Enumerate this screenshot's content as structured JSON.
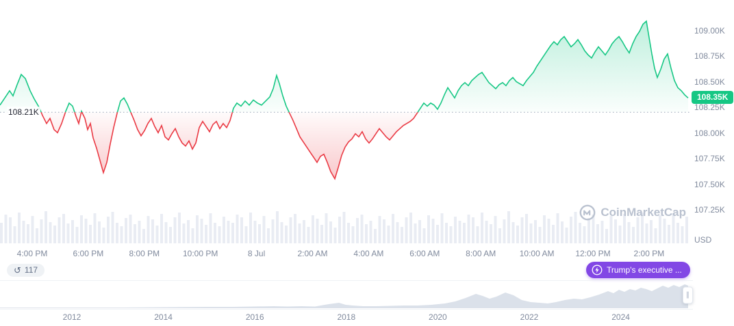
{
  "watermark": {
    "text": "CoinMarketCap"
  },
  "badges": {
    "history_count": "117",
    "news_label": "Trump's executive ..."
  },
  "chart_data": {
    "type": "area",
    "baseline_value": 108.21,
    "baseline_label": "108.21K",
    "current_value": 108.35,
    "current_price_label": "108.35K",
    "y_unit": "USD",
    "ylim": [
      107.1,
      109.25
    ],
    "up_color": "#16c784",
    "down_color": "#ea3943",
    "y_ticks": [
      {
        "label": "109.00K",
        "value": 109.0
      },
      {
        "label": "108.75K",
        "value": 108.75
      },
      {
        "label": "108.50K",
        "value": 108.5
      },
      {
        "label": "108.25K",
        "value": 108.25
      },
      {
        "label": "108.00K",
        "value": 108.0
      },
      {
        "label": "107.75K",
        "value": 107.75
      },
      {
        "label": "107.50K",
        "value": 107.5
      },
      {
        "label": "107.25K",
        "value": 107.25
      }
    ],
    "x_ticks": [
      "4:00 PM",
      "6:00 PM",
      "8:00 PM",
      "10:00 PM",
      "8 Jul",
      "2:00 AM",
      "4:00 AM",
      "6:00 AM",
      "8:00 AM",
      "10:00 AM",
      "12:00 PM",
      "2:00 PM"
    ],
    "points": [
      [
        0,
        108.28
      ],
      [
        8,
        108.36
      ],
      [
        14,
        108.42
      ],
      [
        19,
        108.37
      ],
      [
        25,
        108.48
      ],
      [
        31,
        108.58
      ],
      [
        37,
        108.54
      ],
      [
        44,
        108.42
      ],
      [
        50,
        108.34
      ],
      [
        57,
        108.26
      ],
      [
        62,
        108.18
      ],
      [
        68,
        108.1
      ],
      [
        73,
        108.15
      ],
      [
        79,
        108.04
      ],
      [
        84,
        108.01
      ],
      [
        90,
        108.1
      ],
      [
        96,
        108.22
      ],
      [
        101,
        108.3
      ],
      [
        106,
        108.27
      ],
      [
        111,
        108.17
      ],
      [
        115,
        108.1
      ],
      [
        119,
        108.22
      ],
      [
        124,
        108.15
      ],
      [
        128,
        108.04
      ],
      [
        132,
        108.1
      ],
      [
        136,
        107.96
      ],
      [
        141,
        107.86
      ],
      [
        146,
        107.74
      ],
      [
        151,
        107.62
      ],
      [
        156,
        107.72
      ],
      [
        161,
        107.9
      ],
      [
        166,
        108.06
      ],
      [
        171,
        108.2
      ],
      [
        176,
        108.32
      ],
      [
        181,
        108.35
      ],
      [
        186,
        108.29
      ],
      [
        191,
        108.21
      ],
      [
        196,
        108.13
      ],
      [
        201,
        108.04
      ],
      [
        206,
        107.98
      ],
      [
        211,
        108.03
      ],
      [
        216,
        108.1
      ],
      [
        221,
        108.15
      ],
      [
        226,
        108.07
      ],
      [
        231,
        108.01
      ],
      [
        236,
        108.08
      ],
      [
        241,
        107.97
      ],
      [
        246,
        107.94
      ],
      [
        251,
        108.0
      ],
      [
        256,
        108.05
      ],
      [
        261,
        107.97
      ],
      [
        266,
        107.91
      ],
      [
        271,
        107.88
      ],
      [
        276,
        107.93
      ],
      [
        281,
        107.85
      ],
      [
        286,
        107.91
      ],
      [
        291,
        108.06
      ],
      [
        296,
        108.12
      ],
      [
        301,
        108.07
      ],
      [
        306,
        108.02
      ],
      [
        311,
        108.09
      ],
      [
        316,
        108.12
      ],
      [
        321,
        108.05
      ],
      [
        326,
        108.1
      ],
      [
        331,
        108.06
      ],
      [
        336,
        108.13
      ],
      [
        341,
        108.25
      ],
      [
        346,
        108.3
      ],
      [
        352,
        108.27
      ],
      [
        358,
        108.32
      ],
      [
        364,
        108.28
      ],
      [
        370,
        108.33
      ],
      [
        376,
        108.3
      ],
      [
        382,
        108.28
      ],
      [
        388,
        108.32
      ],
      [
        394,
        108.36
      ],
      [
        399,
        108.44
      ],
      [
        404,
        108.57
      ],
      [
        408,
        108.49
      ],
      [
        413,
        108.37
      ],
      [
        418,
        108.27
      ],
      [
        423,
        108.2
      ],
      [
        428,
        108.13
      ],
      [
        433,
        108.05
      ],
      [
        438,
        107.97
      ],
      [
        443,
        107.92
      ],
      [
        448,
        107.87
      ],
      [
        453,
        107.82
      ],
      [
        458,
        107.77
      ],
      [
        463,
        107.72
      ],
      [
        468,
        107.78
      ],
      [
        473,
        107.8
      ],
      [
        478,
        107.72
      ],
      [
        483,
        107.63
      ],
      [
        489,
        107.56
      ],
      [
        494,
        107.67
      ],
      [
        499,
        107.79
      ],
      [
        504,
        107.87
      ],
      [
        509,
        107.92
      ],
      [
        514,
        107.95
      ],
      [
        519,
        108.0
      ],
      [
        524,
        107.97
      ],
      [
        529,
        108.02
      ],
      [
        534,
        107.95
      ],
      [
        539,
        107.91
      ],
      [
        544,
        107.95
      ],
      [
        549,
        108.0
      ],
      [
        554,
        108.05
      ],
      [
        559,
        108.01
      ],
      [
        564,
        107.97
      ],
      [
        569,
        107.94
      ],
      [
        574,
        107.98
      ],
      [
        579,
        108.02
      ],
      [
        584,
        108.05
      ],
      [
        589,
        108.08
      ],
      [
        594,
        108.1
      ],
      [
        599,
        108.12
      ],
      [
        604,
        108.15
      ],
      [
        609,
        108.2
      ],
      [
        614,
        108.25
      ],
      [
        619,
        108.3
      ],
      [
        624,
        108.27
      ],
      [
        629,
        108.3
      ],
      [
        634,
        108.28
      ],
      [
        639,
        108.24
      ],
      [
        644,
        108.3
      ],
      [
        649,
        108.38
      ],
      [
        654,
        108.45
      ],
      [
        659,
        108.4
      ],
      [
        664,
        108.35
      ],
      [
        669,
        108.42
      ],
      [
        674,
        108.47
      ],
      [
        679,
        108.5
      ],
      [
        684,
        108.47
      ],
      [
        689,
        108.52
      ],
      [
        694,
        108.55
      ],
      [
        699,
        108.58
      ],
      [
        704,
        108.6
      ],
      [
        709,
        108.55
      ],
      [
        714,
        108.5
      ],
      [
        719,
        108.47
      ],
      [
        724,
        108.44
      ],
      [
        729,
        108.48
      ],
      [
        734,
        108.5
      ],
      [
        739,
        108.47
      ],
      [
        744,
        108.52
      ],
      [
        749,
        108.55
      ],
      [
        754,
        108.51
      ],
      [
        759,
        108.49
      ],
      [
        764,
        108.47
      ],
      [
        769,
        108.52
      ],
      [
        774,
        108.56
      ],
      [
        779,
        108.6
      ],
      [
        784,
        108.66
      ],
      [
        789,
        108.71
      ],
      [
        794,
        108.76
      ],
      [
        799,
        108.81
      ],
      [
        804,
        108.86
      ],
      [
        809,
        108.9
      ],
      [
        814,
        108.87
      ],
      [
        819,
        108.92
      ],
      [
        824,
        108.95
      ],
      [
        829,
        108.9
      ],
      [
        834,
        108.85
      ],
      [
        839,
        108.88
      ],
      [
        844,
        108.92
      ],
      [
        849,
        108.87
      ],
      [
        854,
        108.81
      ],
      [
        859,
        108.77
      ],
      [
        864,
        108.74
      ],
      [
        869,
        108.8
      ],
      [
        874,
        108.85
      ],
      [
        879,
        108.81
      ],
      [
        884,
        108.77
      ],
      [
        889,
        108.82
      ],
      [
        894,
        108.88
      ],
      [
        899,
        108.92
      ],
      [
        904,
        108.95
      ],
      [
        909,
        108.9
      ],
      [
        914,
        108.84
      ],
      [
        919,
        108.79
      ],
      [
        924,
        108.88
      ],
      [
        929,
        108.95
      ],
      [
        934,
        109.0
      ],
      [
        939,
        109.07
      ],
      [
        944,
        109.1
      ],
      [
        948,
        108.94
      ],
      [
        952,
        108.78
      ],
      [
        956,
        108.64
      ],
      [
        960,
        108.55
      ],
      [
        965,
        108.63
      ],
      [
        970,
        108.73
      ],
      [
        975,
        108.78
      ],
      [
        980,
        108.64
      ],
      [
        985,
        108.52
      ],
      [
        990,
        108.45
      ],
      [
        995,
        108.42
      ],
      [
        1000,
        108.38
      ],
      [
        1005,
        108.35
      ]
    ],
    "volume_pattern": [
      30,
      42,
      38,
      25,
      45,
      33,
      28,
      40,
      22,
      35,
      47,
      31,
      26,
      38,
      43,
      29,
      34,
      24,
      41,
      36,
      27,
      44,
      32,
      23,
      39,
      46,
      30,
      25,
      37,
      42,
      28,
      33,
      21,
      40,
      35,
      26,
      43,
      31,
      24,
      38,
      45,
      29,
      34,
      22,
      41,
      36,
      27,
      44,
      30,
      25,
      39,
      33
    ],
    "timeline": {
      "years": [
        "2012",
        "2014",
        "2016",
        "2018",
        "2020",
        "2022",
        "2024"
      ],
      "profile": [
        [
          0,
          1
        ],
        [
          60,
          1
        ],
        [
          120,
          1
        ],
        [
          180,
          1
        ],
        [
          240,
          1.5
        ],
        [
          300,
          2
        ],
        [
          340,
          2
        ],
        [
          370,
          2.5
        ],
        [
          400,
          3
        ],
        [
          420,
          2.5
        ],
        [
          440,
          3
        ],
        [
          460,
          2.5
        ],
        [
          480,
          6
        ],
        [
          495,
          8
        ],
        [
          505,
          5
        ],
        [
          515,
          4
        ],
        [
          530,
          3
        ],
        [
          550,
          3
        ],
        [
          570,
          3.5
        ],
        [
          590,
          4
        ],
        [
          610,
          4
        ],
        [
          630,
          5
        ],
        [
          650,
          7
        ],
        [
          665,
          10
        ],
        [
          680,
          15
        ],
        [
          695,
          21
        ],
        [
          705,
          18
        ],
        [
          715,
          14
        ],
        [
          725,
          17
        ],
        [
          738,
          23
        ],
        [
          750,
          19
        ],
        [
          762,
          12
        ],
        [
          775,
          9
        ],
        [
          788,
          8
        ],
        [
          800,
          7
        ],
        [
          812,
          9
        ],
        [
          825,
          12
        ],
        [
          838,
          14
        ],
        [
          850,
          13
        ],
        [
          862,
          16
        ],
        [
          875,
          20
        ],
        [
          888,
          25
        ],
        [
          896,
          22
        ],
        [
          904,
          27
        ],
        [
          912,
          24
        ],
        [
          920,
          28
        ],
        [
          928,
          26
        ],
        [
          936,
          30
        ],
        [
          944,
          28
        ],
        [
          952,
          25
        ],
        [
          960,
          29
        ],
        [
          968,
          33
        ],
        [
          976,
          30
        ],
        [
          984,
          34
        ],
        [
          992,
          31
        ],
        [
          1000,
          35
        ],
        [
          1005,
          33
        ]
      ]
    }
  }
}
